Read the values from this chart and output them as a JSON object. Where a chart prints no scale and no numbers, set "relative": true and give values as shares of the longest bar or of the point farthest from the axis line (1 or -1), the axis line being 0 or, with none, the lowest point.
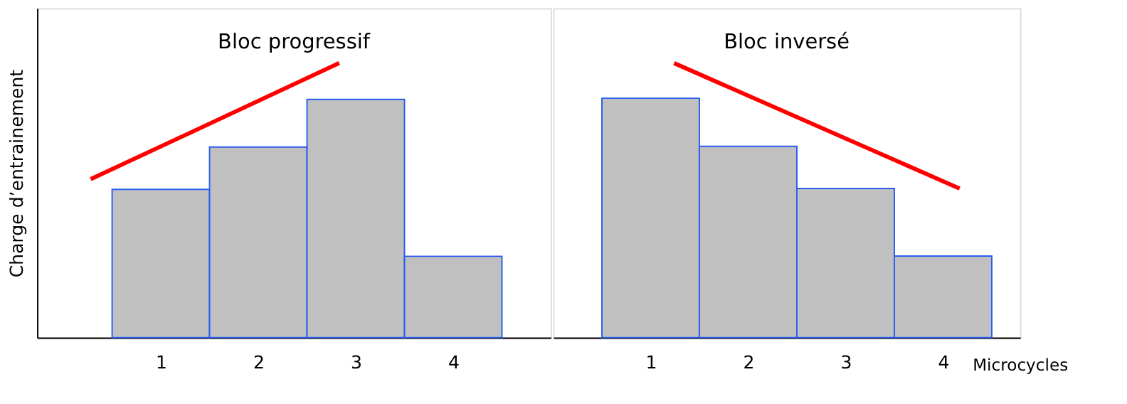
{
  "chart_data": [
    {
      "type": "bar",
      "relative": true,
      "title": "Bloc progressif",
      "ylabel": "Charge d’entrainement",
      "x": [
        1,
        2,
        3,
        4
      ],
      "xlim": [
        -0.27,
        5.0
      ],
      "xticks": [
        1,
        2,
        3,
        4
      ],
      "series": [
        {
          "color": "#c0c0c0",
          "values": [
            0.54,
            0.694,
            0.868,
            0.296
          ]
        },
        {
          "type": "line",
          "color": "#ff0000",
          "x": [
            0.28,
            2.83
          ],
          "values": [
            0.577,
            1.0
          ]
        }
      ]
    },
    {
      "type": "bar",
      "relative": true,
      "title": "Bloc inversé",
      "xlabel": "Microcycles",
      "tick_labels": "x",
      "x": [
        1,
        2,
        3,
        4
      ],
      "xlim": [
        0.0,
        4.79
      ],
      "xticks": [
        1,
        2,
        3,
        4
      ],
      "series": [
        {
          "color": "#c0c0c0",
          "values": [
            0.872,
            0.697,
            0.543,
            0.297
          ]
        },
        {
          "type": "line",
          "color": "#ff0000",
          "x": [
            1.24,
            4.17
          ],
          "values": [
            1.0,
            0.543
          ]
        }
      ]
    }
  ]
}
